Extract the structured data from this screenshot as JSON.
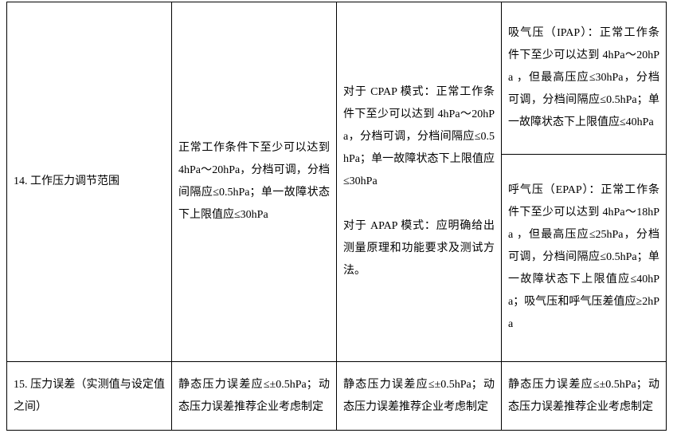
{
  "table": {
    "rows": [
      {
        "label": "14. 工作压力调节范围",
        "col2": "正常工作条件下至少可以达到 4hPa～20hPa，分档可调，分档间隔应≤0.5hPa；单一故障状态下上限值应≤30hPa",
        "col3_p1": "对于 CPAP 模式：正常工作条件下至少可以达到 4hPa～20hPa，分档可调，分档间隔应≤0.5hPa；单一故障状态下上限值应≤30hPa",
        "col3_p2": "对于 APAP 模式：应明确给出测量原理和功能要求及测试方法。",
        "col4a": "吸气压（IPAP）：正常工作条件下至少可以达到 4hPa～20hPa ，但最高压应≤30hPa，分档可调，分档间隔应≤0.5hPa；单一故障状态下上限值应≤40hPa",
        "col4b": "呼气压（EPAP）：正常工作条件下至少可以达到 4hPa～18hPa ，但最高压应≤25hPa，分档可调，分档间隔应≤0.5hPa；单一故障状态下上限值应≤40hPa；吸气压和呼气压差值应≥2hPa"
      },
      {
        "label": "15. 压力误差（实测值与设定值之间）",
        "col2": "静态压力误差应≤±0.5hPa；动态压力误差推荐企业考虑制定",
        "col3": "静态压力误差应≤±0.5hPa；动态压力误差推荐企业考虑制定",
        "col4": "静态压力误差应≤±0.5hPa；动态压力误差推荐企业考虑制定"
      }
    ]
  },
  "style": {
    "font_family": "SimSun",
    "font_size_pt": 10.5,
    "line_height": 2.0,
    "text_color": "#000000",
    "border_color": "#000000",
    "background_color": "#ffffff"
  }
}
